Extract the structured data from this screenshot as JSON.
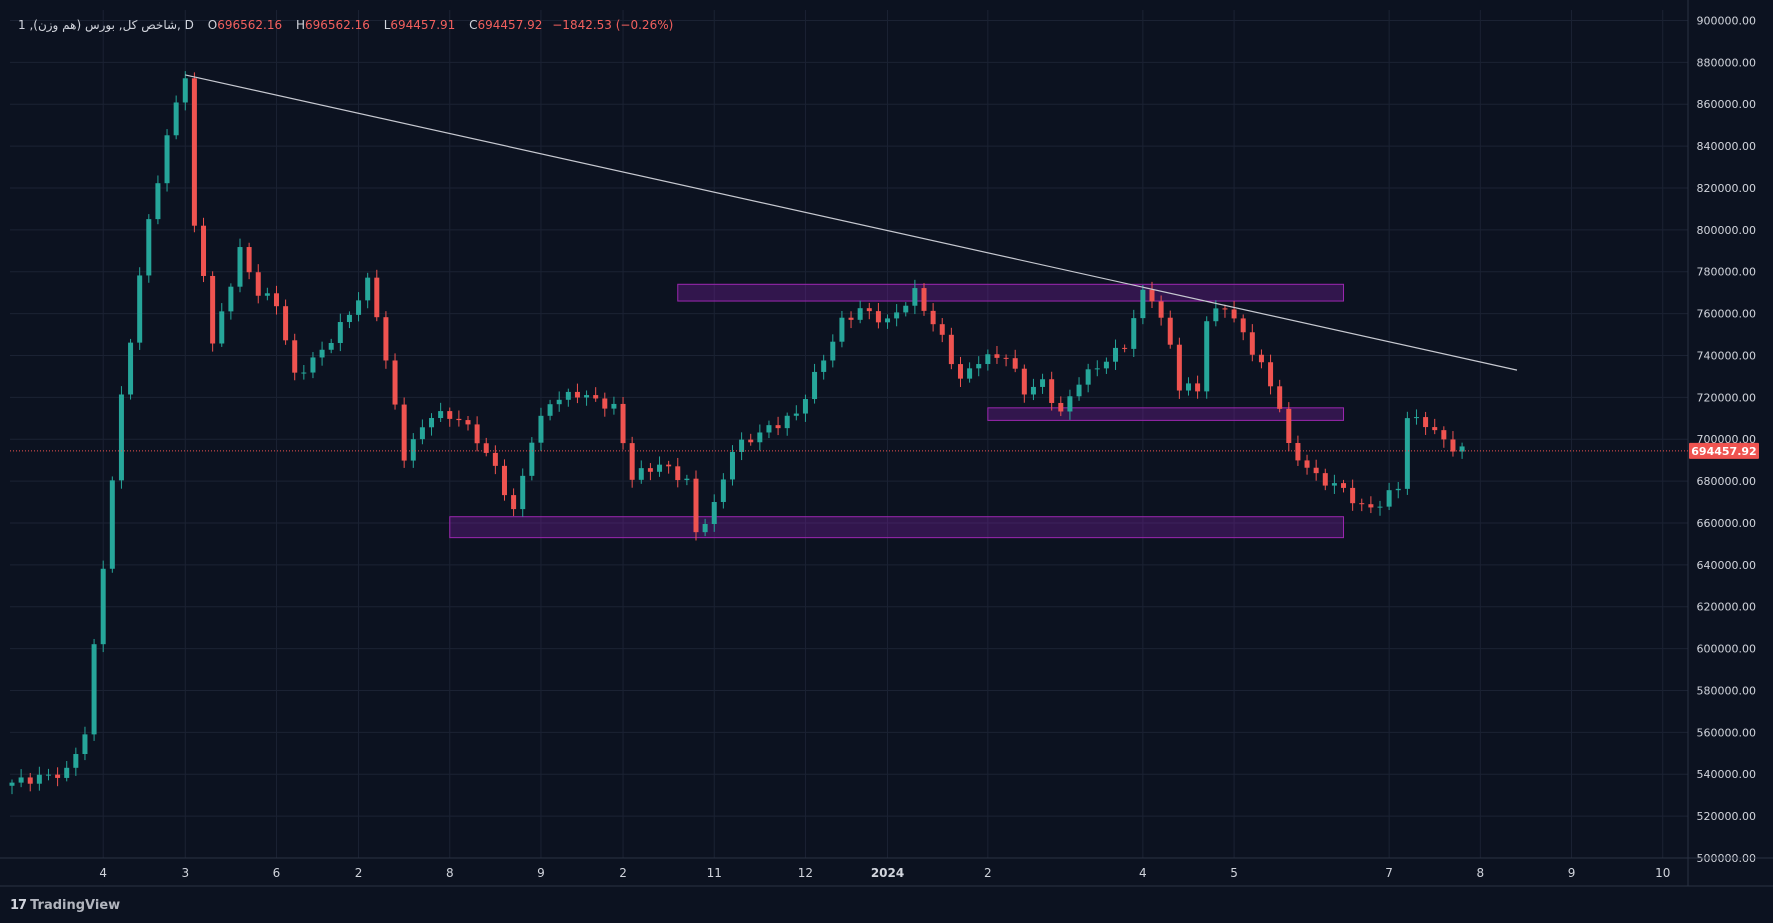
{
  "header": {
    "symbol": "1 ,(هم وزن) شاخص کل, بورس, D",
    "open_label": "O",
    "open": "696562.16",
    "high_label": "H",
    "high": "696562.16",
    "low_label": "L",
    "low": "694457.91",
    "close_label": "C",
    "close": "694457.92",
    "change": "−1842.53 (−0.26%)"
  },
  "brand": {
    "logo": "17",
    "name": "TradingView"
  },
  "colors": {
    "background": "#0c1220",
    "grid": "#1b2233",
    "up": "#26a69a",
    "down": "#ef5350",
    "trendline": "#c7c9d1",
    "zone_fill": "rgba(123,31,162,0.35)",
    "zone_border": "#9c27b0",
    "price_label_bg": "#ef5350"
  },
  "chart_data": {
    "type": "candlestick",
    "title": "شاخص کل (هم وزن)",
    "ylim": [
      500000,
      905000
    ],
    "y_ticks": [
      "900000.00",
      "880000.00",
      "860000.00",
      "840000.00",
      "820000.00",
      "800000.00",
      "780000.00",
      "760000.00",
      "740000.00",
      "720000.00",
      "700000.00",
      "680000.00",
      "660000.00",
      "640000.00",
      "620000.00",
      "600000.00",
      "580000.00",
      "560000.00",
      "540000.00",
      "520000.00",
      "500000.00"
    ],
    "x_ticks": [
      {
        "label": "4",
        "index": 10
      },
      {
        "label": "3",
        "index": 19
      },
      {
        "label": "6",
        "index": 29
      },
      {
        "label": "2",
        "index": 38
      },
      {
        "label": "8",
        "index": 48
      },
      {
        "label": "9",
        "index": 58
      },
      {
        "label": "2",
        "index": 67
      },
      {
        "label": "11",
        "index": 77
      },
      {
        "label": "12",
        "index": 87
      },
      {
        "label": "2024",
        "index": 96
      },
      {
        "label": "2",
        "index": 107
      },
      {
        "label": "4",
        "index": 124
      },
      {
        "label": "5",
        "index": 134
      },
      {
        "label": "7",
        "index": 151
      },
      {
        "label": "8",
        "index": 161
      },
      {
        "label": "9",
        "index": 171
      },
      {
        "label": "10",
        "index": 181
      }
    ],
    "last_price": 694457.92,
    "last_price_label": "694457.92",
    "anchors": [
      [
        0,
        536000
      ],
      [
        6,
        541000
      ],
      [
        8,
        560000
      ],
      [
        12,
        720000
      ],
      [
        15,
        805000
      ],
      [
        18,
        862000
      ],
      [
        19,
        873000
      ],
      [
        20,
        800000
      ],
      [
        21,
        780000
      ],
      [
        22,
        745000
      ],
      [
        25,
        790000
      ],
      [
        27,
        770000
      ],
      [
        29,
        765000
      ],
      [
        31,
        730000
      ],
      [
        34,
        742000
      ],
      [
        37,
        760000
      ],
      [
        39,
        775000
      ],
      [
        40,
        760000
      ],
      [
        42,
        715000
      ],
      [
        43,
        692000
      ],
      [
        46,
        712000
      ],
      [
        49,
        710000
      ],
      [
        51,
        700000
      ],
      [
        53,
        686000
      ],
      [
        55,
        665000
      ],
      [
        57,
        700000
      ],
      [
        59,
        718000
      ],
      [
        62,
        722000
      ],
      [
        66,
        715000
      ],
      [
        68,
        682000
      ],
      [
        71,
        688000
      ],
      [
        74,
        680000
      ],
      [
        75,
        655000
      ],
      [
        77,
        668000
      ],
      [
        79,
        695000
      ],
      [
        82,
        703000
      ],
      [
        86,
        712000
      ],
      [
        88,
        730000
      ],
      [
        91,
        756000
      ],
      [
        93,
        762000
      ],
      [
        96,
        756000
      ],
      [
        99,
        770000
      ],
      [
        102,
        748000
      ],
      [
        104,
        728000
      ],
      [
        106,
        738000
      ],
      [
        109,
        740000
      ],
      [
        111,
        723000
      ],
      [
        113,
        727000
      ],
      [
        115,
        712000
      ],
      [
        117,
        728000
      ],
      [
        120,
        738000
      ],
      [
        122,
        745000
      ],
      [
        124,
        770000
      ],
      [
        125,
        768000
      ],
      [
        127,
        745000
      ],
      [
        128,
        725000
      ],
      [
        130,
        724000
      ],
      [
        131,
        757000
      ],
      [
        133,
        764000
      ],
      [
        135,
        750000
      ],
      [
        137,
        735000
      ],
      [
        139,
        716000
      ],
      [
        140,
        696000
      ],
      [
        143,
        682000
      ],
      [
        146,
        676000
      ],
      [
        148,
        667000
      ],
      [
        150,
        669000
      ],
      [
        152,
        678000
      ],
      [
        153,
        710000
      ],
      [
        155,
        708000
      ],
      [
        156,
        703000
      ],
      [
        158,
        696000
      ],
      [
        159,
        694458
      ]
    ]
  }
}
